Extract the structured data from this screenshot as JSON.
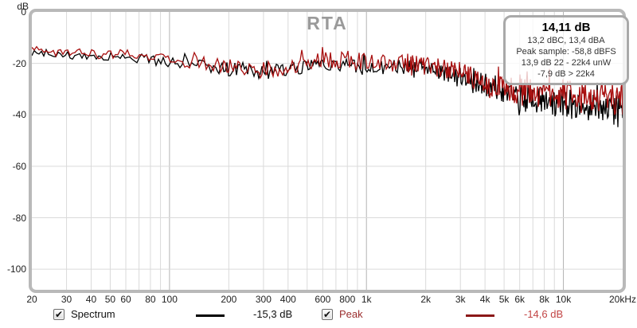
{
  "title": "RTA",
  "icons": {
    "check": "✔"
  },
  "info_box": {
    "title": "14,11 dB",
    "lines": [
      "13,2 dBC, 13,4 dBA",
      "Peak sample: -58,8 dBFS",
      "13,9 dB 22 - 22k4 unW",
      "-7,9 dB > 22k4"
    ]
  },
  "legend": {
    "spectrum": {
      "label": "Spectrum",
      "value": "-15,3 dB",
      "checked": true
    },
    "peak": {
      "label": "Peak",
      "value": "-14,6 dB",
      "checked": true
    }
  },
  "colors": {
    "spectrum_trace": "#000000",
    "peak_trace": "#a81010",
    "peak_swatch": "#8b1818",
    "grid_minor": "#dadada",
    "grid_major": "#b3b3b3",
    "border": "#b9b9b9",
    "title": "#9a9a9a"
  },
  "chart_data": {
    "type": "line",
    "title": "RTA",
    "ylabel": "dB",
    "x_scale": "log",
    "x_range": [
      20,
      20000
    ],
    "y_range": [
      0,
      -108
    ],
    "y_ticks": [
      0,
      -20,
      -40,
      -60,
      -80,
      -100
    ],
    "x_gridlines": [
      20,
      30,
      40,
      50,
      60,
      70,
      80,
      90,
      100,
      200,
      300,
      400,
      500,
      600,
      700,
      800,
      900,
      1000,
      2000,
      3000,
      4000,
      5000,
      6000,
      7000,
      8000,
      9000,
      10000,
      20000
    ],
    "x_gridlines_major": [
      100,
      1000,
      10000
    ],
    "x_ticks": [
      {
        "f": 20,
        "label": "20"
      },
      {
        "f": 30,
        "label": "30"
      },
      {
        "f": 40,
        "label": "40"
      },
      {
        "f": 50,
        "label": "50"
      },
      {
        "f": 60,
        "label": "60"
      },
      {
        "f": 80,
        "label": "80"
      },
      {
        "f": 100,
        "label": "100"
      },
      {
        "f": 200,
        "label": "200"
      },
      {
        "f": 300,
        "label": "300"
      },
      {
        "f": 400,
        "label": "400"
      },
      {
        "f": 600,
        "label": "600"
      },
      {
        "f": 800,
        "label": "800"
      },
      {
        "f": 1000,
        "label": "1k"
      },
      {
        "f": 2000,
        "label": "2k"
      },
      {
        "f": 3000,
        "label": "3k"
      },
      {
        "f": 4000,
        "label": "4k"
      },
      {
        "f": 5000,
        "label": "5k"
      },
      {
        "f": 6000,
        "label": "6k"
      },
      {
        "f": 8000,
        "label": "8k"
      },
      {
        "f": 10000,
        "label": "10k"
      },
      {
        "f": 20000,
        "label": "20kHz"
      }
    ],
    "series": [
      {
        "name": "Spectrum",
        "color": "#000000",
        "current_value": "-15,3 dB",
        "freqs": [
          20,
          30,
          40,
          60,
          80,
          100,
          150,
          200,
          300,
          400,
          500,
          700,
          1000,
          1500,
          2000,
          3000,
          4000,
          5000,
          6000,
          8000,
          10000,
          15000,
          20000
        ],
        "db_mean": [
          -15.5,
          -16.5,
          -17,
          -17.5,
          -18.5,
          -19.5,
          -21,
          -22,
          -23.5,
          -23,
          -21.5,
          -20.5,
          -21,
          -21.5,
          -22,
          -25,
          -29,
          -31.5,
          -33.5,
          -35,
          -35.5,
          -36.5,
          -37.5
        ],
        "db_spread": [
          1.5,
          1.5,
          1.5,
          2,
          2,
          2.5,
          2.5,
          3,
          3,
          3,
          3,
          3,
          3,
          3,
          3,
          3.5,
          4,
          4.5,
          5,
          5.5,
          5.5,
          5.5,
          5.5
        ]
      },
      {
        "name": "Peak",
        "color": "#a81010",
        "current_value": "-14,6 dB",
        "freqs": [
          20,
          30,
          40,
          60,
          80,
          100,
          150,
          200,
          300,
          400,
          500,
          700,
          1000,
          1500,
          2000,
          3000,
          4000,
          5000,
          6000,
          8000,
          10000,
          15000,
          20000
        ],
        "db_mean": [
          -14.5,
          -15.5,
          -16,
          -16.5,
          -17.5,
          -18.5,
          -20,
          -21,
          -22.5,
          -21.5,
          -20,
          -18.5,
          -19.5,
          -20,
          -20.5,
          -23.5,
          -27.5,
          -29.5,
          -31,
          -32,
          -32.5,
          -33,
          -34
        ],
        "db_spread": [
          1.5,
          1.5,
          1.5,
          2,
          2,
          2.5,
          2.5,
          3,
          3,
          3,
          3.5,
          3.5,
          3.5,
          3.5,
          3.5,
          4,
          4.5,
          5,
          5.5,
          6,
          6,
          6,
          6
        ]
      }
    ]
  }
}
